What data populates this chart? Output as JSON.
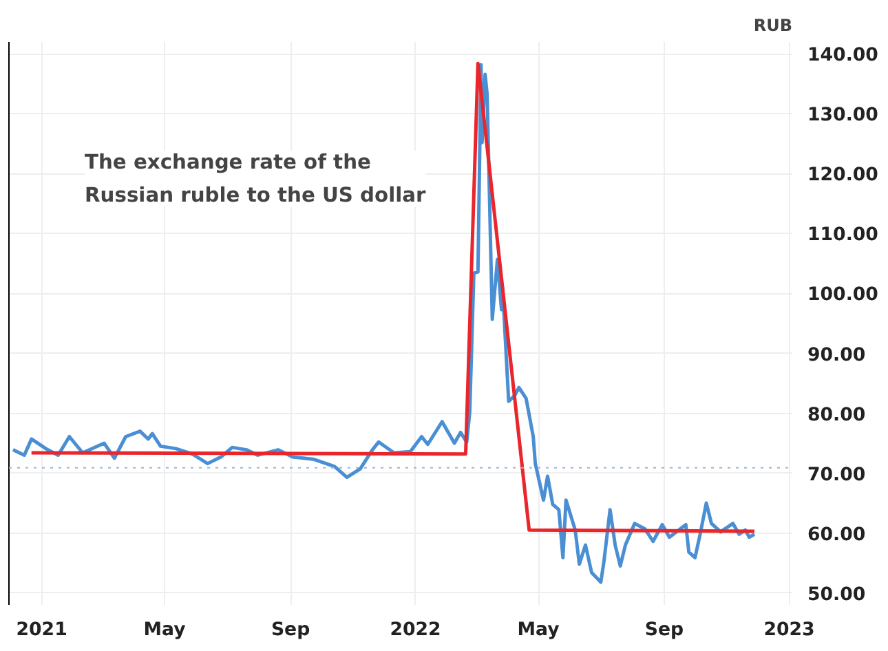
{
  "chart_data": {
    "type": "line",
    "title": "The exchange rate of the\nRussian ruble to the US dollar",
    "ylabel": "RUB",
    "xlim": [
      "2020-11-30",
      "2023-01-04"
    ],
    "ylim": [
      48,
      142
    ],
    "xticks": [
      {
        "value": "2021-01-01",
        "label": "2021"
      },
      {
        "value": "2021-05-01",
        "label": "May"
      },
      {
        "value": "2021-09-01",
        "label": "Sep"
      },
      {
        "value": "2022-01-01",
        "label": "2022"
      },
      {
        "value": "2022-05-01",
        "label": "May"
      },
      {
        "value": "2022-09-01",
        "label": "Sep"
      },
      {
        "value": "2023-01-01",
        "label": "2023"
      }
    ],
    "yticks": [
      {
        "value": 50,
        "label": "50.00"
      },
      {
        "value": 60,
        "label": "60.00"
      },
      {
        "value": 70,
        "label": "70.00"
      },
      {
        "value": 80,
        "label": "80.00"
      },
      {
        "value": 90,
        "label": "90.00"
      },
      {
        "value": 100,
        "label": "100.00"
      },
      {
        "value": 110,
        "label": "110.00"
      },
      {
        "value": 120,
        "label": "120.00"
      },
      {
        "value": 130,
        "label": "130.00"
      },
      {
        "value": 140,
        "label": "140.00"
      }
    ],
    "grid": true,
    "marker": "none",
    "line_style": "solid",
    "ref_lines": [
      {
        "axis": "y",
        "value": 70.9,
        "color": "#9ab8d8",
        "line_style": "dotted"
      }
    ],
    "series": [
      {
        "color": "#4a8fd4",
        "x": [
          "2020-12-04",
          "2020-12-15",
          "2020-12-22",
          "2021-01-05",
          "2021-01-17",
          "2021-01-28",
          "2021-02-10",
          "2021-03-03",
          "2021-03-13",
          "2021-03-24",
          "2021-04-07",
          "2021-04-15",
          "2021-04-19",
          "2021-04-27",
          "2021-05-12",
          "2021-05-28",
          "2021-06-12",
          "2021-06-25",
          "2021-07-06",
          "2021-07-20",
          "2021-07-31",
          "2021-08-20",
          "2021-09-03",
          "2021-09-24",
          "2021-10-14",
          "2021-10-26",
          "2021-11-08",
          "2021-11-20",
          "2021-11-26",
          "2021-12-11",
          "2021-12-27",
          "2022-01-07",
          "2022-01-13",
          "2022-01-27",
          "2022-02-08",
          "2022-02-14",
          "2022-02-20",
          "2022-02-23",
          "2022-02-27",
          "2022-03-03",
          "2022-03-06",
          "2022-03-07",
          "2022-03-10",
          "2022-03-12",
          "2022-03-17",
          "2022-03-22",
          "2022-03-26",
          "2022-03-27",
          "2022-04-02",
          "2022-04-08",
          "2022-04-12",
          "2022-04-19",
          "2022-04-26",
          "2022-04-28",
          "2022-05-06",
          "2022-05-10",
          "2022-05-15",
          "2022-05-21",
          "2022-05-25",
          "2022-05-28",
          "2022-06-06",
          "2022-06-10",
          "2022-06-16",
          "2022-06-22",
          "2022-07-01",
          "2022-07-04",
          "2022-07-10",
          "2022-07-15",
          "2022-07-20",
          "2022-07-25",
          "2022-08-03",
          "2022-08-13",
          "2022-08-21",
          "2022-08-30",
          "2022-09-06",
          "2022-09-22",
          "2022-09-25",
          "2022-10-01",
          "2022-10-06",
          "2022-10-12",
          "2022-10-17",
          "2022-10-26",
          "2022-11-07",
          "2022-11-13",
          "2022-11-19",
          "2022-11-23",
          "2022-11-28"
        ],
        "values": [
          73.9,
          73.0,
          75.7,
          74.1,
          73.0,
          76.1,
          73.4,
          75.0,
          72.5,
          76.1,
          77.0,
          75.7,
          76.6,
          74.5,
          74.1,
          73.2,
          71.6,
          72.7,
          74.3,
          73.9,
          73.0,
          73.9,
          72.7,
          72.3,
          71.1,
          69.3,
          70.7,
          73.9,
          75.2,
          73.4,
          73.6,
          76.1,
          74.8,
          78.6,
          75.0,
          76.8,
          75.2,
          80.2,
          103.4,
          103.6,
          138.2,
          125.2,
          136.6,
          133.2,
          95.7,
          105.7,
          97.3,
          101.1,
          82.0,
          83.0,
          84.3,
          82.5,
          76.1,
          71.6,
          65.5,
          69.5,
          64.8,
          63.9,
          55.9,
          65.5,
          60.5,
          54.8,
          58.0,
          53.4,
          51.8,
          55.2,
          63.9,
          58.0,
          54.5,
          58.0,
          61.6,
          60.7,
          58.6,
          61.4,
          59.3,
          61.4,
          56.8,
          55.9,
          59.8,
          65.0,
          61.6,
          60.2,
          61.6,
          59.8,
          60.5,
          59.3,
          59.8
        ]
      },
      {
        "type": "line",
        "color": "#e8262c",
        "x": [
          "2020-12-22",
          "2022-02-19",
          "2022-03-03",
          "2022-04-22",
          "2022-11-28"
        ],
        "values": [
          73.4,
          73.2,
          138.4,
          60.5,
          60.3
        ]
      }
    ]
  }
}
